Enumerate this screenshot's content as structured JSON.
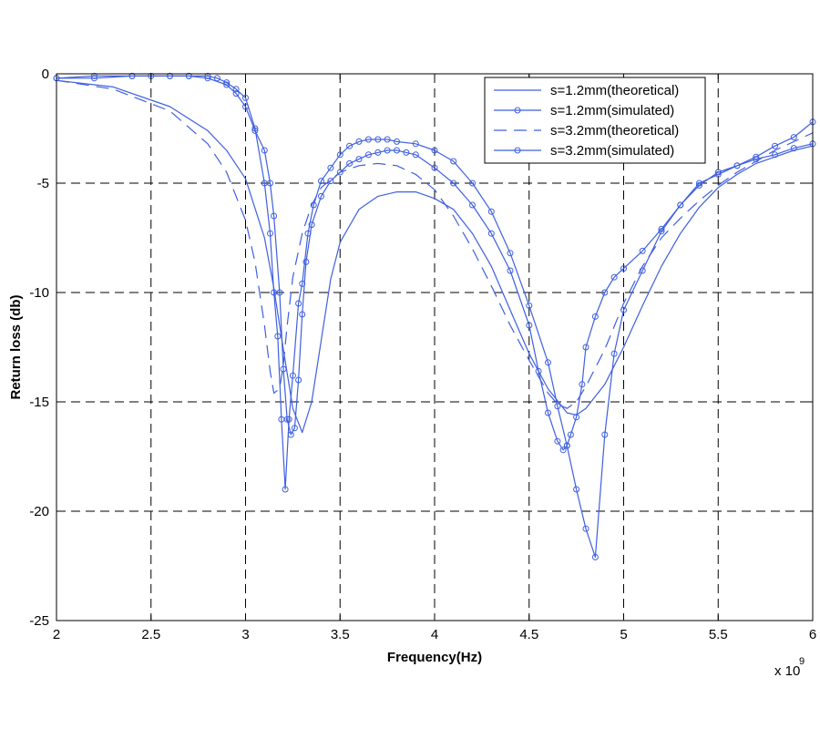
{
  "chart_data": {
    "type": "line",
    "xlabel": "Frequency(Hz)",
    "ylabel": "Return loss (db)",
    "x_multiplier": "x 10",
    "x_multiplier_exp": "9",
    "xlim": [
      2,
      6
    ],
    "ylim": [
      -25,
      0
    ],
    "xticks": [
      2,
      2.5,
      3,
      3.5,
      4,
      4.5,
      5,
      5.5,
      6
    ],
    "xtick_labels": [
      "2",
      "2.5",
      "3",
      "3.5",
      "4",
      "4.5",
      "5",
      "5.5",
      "6"
    ],
    "yticks": [
      0,
      -5,
      -10,
      -15,
      -20,
      -25
    ],
    "ytick_labels": [
      "0",
      "-5",
      "-10",
      "-15",
      "-20",
      "-25"
    ],
    "grid": true,
    "legend_position": "top-right",
    "line_color": "#3f5fe0",
    "series": [
      {
        "name": "s=1.2mm(theoretical)",
        "style": "solid",
        "marker": "none",
        "x": [
          2.0,
          2.3,
          2.6,
          2.8,
          2.9,
          3.0,
          3.1,
          3.15,
          3.2,
          3.25,
          3.3,
          3.35,
          3.4,
          3.45,
          3.5,
          3.6,
          3.7,
          3.8,
          3.9,
          4.0,
          4.1,
          4.2,
          4.3,
          4.4,
          4.5,
          4.6,
          4.7,
          4.75,
          4.8,
          4.9,
          5.0,
          5.1,
          5.2,
          5.3,
          5.4,
          5.5,
          5.6,
          5.7,
          5.8,
          5.9,
          6.0
        ],
        "y": [
          -0.3,
          -0.6,
          -1.5,
          -2.6,
          -3.5,
          -4.8,
          -7.5,
          -9.8,
          -12.6,
          -15.3,
          -16.4,
          -15.0,
          -12.2,
          -9.4,
          -7.7,
          -6.2,
          -5.6,
          -5.4,
          -5.4,
          -5.7,
          -6.2,
          -7.3,
          -8.8,
          -10.8,
          -12.8,
          -14.4,
          -15.5,
          -15.6,
          -15.3,
          -14.2,
          -12.5,
          -10.6,
          -8.8,
          -7.3,
          -6.1,
          -5.2,
          -4.6,
          -4.1,
          -3.8,
          -3.5,
          -3.3
        ]
      },
      {
        "name": "s=1.2mm(simulated)",
        "style": "solid",
        "marker": "circle",
        "x": [
          2.0,
          2.2,
          2.4,
          2.6,
          2.7,
          2.8,
          2.9,
          2.95,
          3.0,
          3.05,
          3.1,
          3.13,
          3.15,
          3.18,
          3.2,
          3.22,
          3.24,
          3.26,
          3.28,
          3.3,
          3.32,
          3.35,
          3.4,
          3.45,
          3.5,
          3.55,
          3.6,
          3.65,
          3.7,
          3.75,
          3.8,
          3.85,
          3.9,
          4.0,
          4.1,
          4.2,
          4.3,
          4.4,
          4.5,
          4.55,
          4.6,
          4.65,
          4.68,
          4.7,
          4.72,
          4.75,
          4.78,
          4.8,
          4.85,
          4.9,
          4.95,
          5.0,
          5.1,
          5.2,
          5.3,
          5.4,
          5.5,
          5.6,
          5.7,
          5.8,
          5.9,
          6.0
        ],
        "y": [
          -0.2,
          -0.2,
          -0.1,
          -0.1,
          -0.1,
          -0.2,
          -0.5,
          -0.9,
          -1.5,
          -2.6,
          -3.5,
          -5.0,
          -6.5,
          -10.0,
          -13.5,
          -15.8,
          -16.5,
          -16.2,
          -14.0,
          -11.0,
          -8.6,
          -6.9,
          -5.6,
          -4.9,
          -4.5,
          -4.1,
          -3.9,
          -3.7,
          -3.6,
          -3.5,
          -3.5,
          -3.6,
          -3.7,
          -4.3,
          -5.0,
          -6.0,
          -7.3,
          -9.0,
          -11.5,
          -13.6,
          -15.5,
          -16.8,
          -17.2,
          -17.0,
          -16.5,
          -15.7,
          -14.2,
          -12.5,
          -11.1,
          -10.0,
          -9.3,
          -8.9,
          -8.1,
          -7.1,
          -6.0,
          -5.1,
          -4.5,
          -4.2,
          -3.9,
          -3.7,
          -3.4,
          -3.2
        ]
      },
      {
        "name": "s=3.2mm(theoretical)",
        "style": "dashed",
        "marker": "none",
        "x": [
          2.0,
          2.3,
          2.6,
          2.8,
          2.9,
          3.0,
          3.05,
          3.1,
          3.13,
          3.15,
          3.18,
          3.2,
          3.22,
          3.25,
          3.3,
          3.35,
          3.4,
          3.5,
          3.6,
          3.7,
          3.8,
          3.9,
          4.0,
          4.1,
          4.2,
          4.3,
          4.4,
          4.5,
          4.6,
          4.65,
          4.7,
          4.75,
          4.8,
          4.9,
          5.0,
          5.1,
          5.2,
          5.3,
          5.4,
          5.5,
          5.6,
          5.7,
          5.8,
          5.9,
          6.0
        ],
        "y": [
          -0.3,
          -0.7,
          -1.7,
          -3.2,
          -4.5,
          -6.7,
          -8.6,
          -11.5,
          -13.6,
          -14.6,
          -14.4,
          -13.3,
          -11.5,
          -9.3,
          -7.3,
          -6.0,
          -5.2,
          -4.5,
          -4.2,
          -4.1,
          -4.2,
          -4.6,
          -5.3,
          -6.5,
          -8.0,
          -9.7,
          -11.5,
          -13.1,
          -14.6,
          -15.1,
          -15.3,
          -15.0,
          -14.3,
          -12.6,
          -10.5,
          -8.8,
          -7.5,
          -6.6,
          -5.8,
          -5.1,
          -4.5,
          -4.0,
          -3.5,
          -3.1,
          -2.7
        ]
      },
      {
        "name": "s=3.2mm(simulated)",
        "style": "solid",
        "marker": "circle",
        "x": [
          2.0,
          2.2,
          2.4,
          2.5,
          2.6,
          2.7,
          2.8,
          2.85,
          2.9,
          2.95,
          3.0,
          3.05,
          3.1,
          3.13,
          3.15,
          3.17,
          3.19,
          3.21,
          3.23,
          3.25,
          3.28,
          3.3,
          3.33,
          3.36,
          3.4,
          3.45,
          3.5,
          3.55,
          3.6,
          3.65,
          3.7,
          3.75,
          3.8,
          3.9,
          4.0,
          4.1,
          4.2,
          4.3,
          4.4,
          4.5,
          4.6,
          4.65,
          4.7,
          4.75,
          4.8,
          4.85,
          4.9,
          4.95,
          5.0,
          5.1,
          5.2,
          5.3,
          5.4,
          5.5,
          5.6,
          5.7,
          5.8,
          5.9,
          6.0
        ],
        "y": [
          -0.2,
          -0.1,
          -0.1,
          -0.1,
          -0.1,
          -0.1,
          -0.1,
          -0.2,
          -0.4,
          -0.7,
          -1.1,
          -2.5,
          -5.0,
          -7.3,
          -10.0,
          -12.0,
          -15.8,
          -19.0,
          -15.8,
          -13.8,
          -10.5,
          -9.6,
          -7.3,
          -6.0,
          -4.9,
          -4.3,
          -3.7,
          -3.3,
          -3.1,
          -3.0,
          -3.0,
          -3.0,
          -3.1,
          -3.2,
          -3.5,
          -4.0,
          -5.0,
          -6.3,
          -8.2,
          -10.6,
          -13.2,
          -15.2,
          -17.0,
          -19.0,
          -20.8,
          -22.1,
          -16.5,
          -12.8,
          -10.8,
          -9.0,
          -7.2,
          -6.0,
          -5.0,
          -4.6,
          -4.2,
          -3.8,
          -3.3,
          -2.9,
          -2.2
        ]
      }
    ]
  }
}
